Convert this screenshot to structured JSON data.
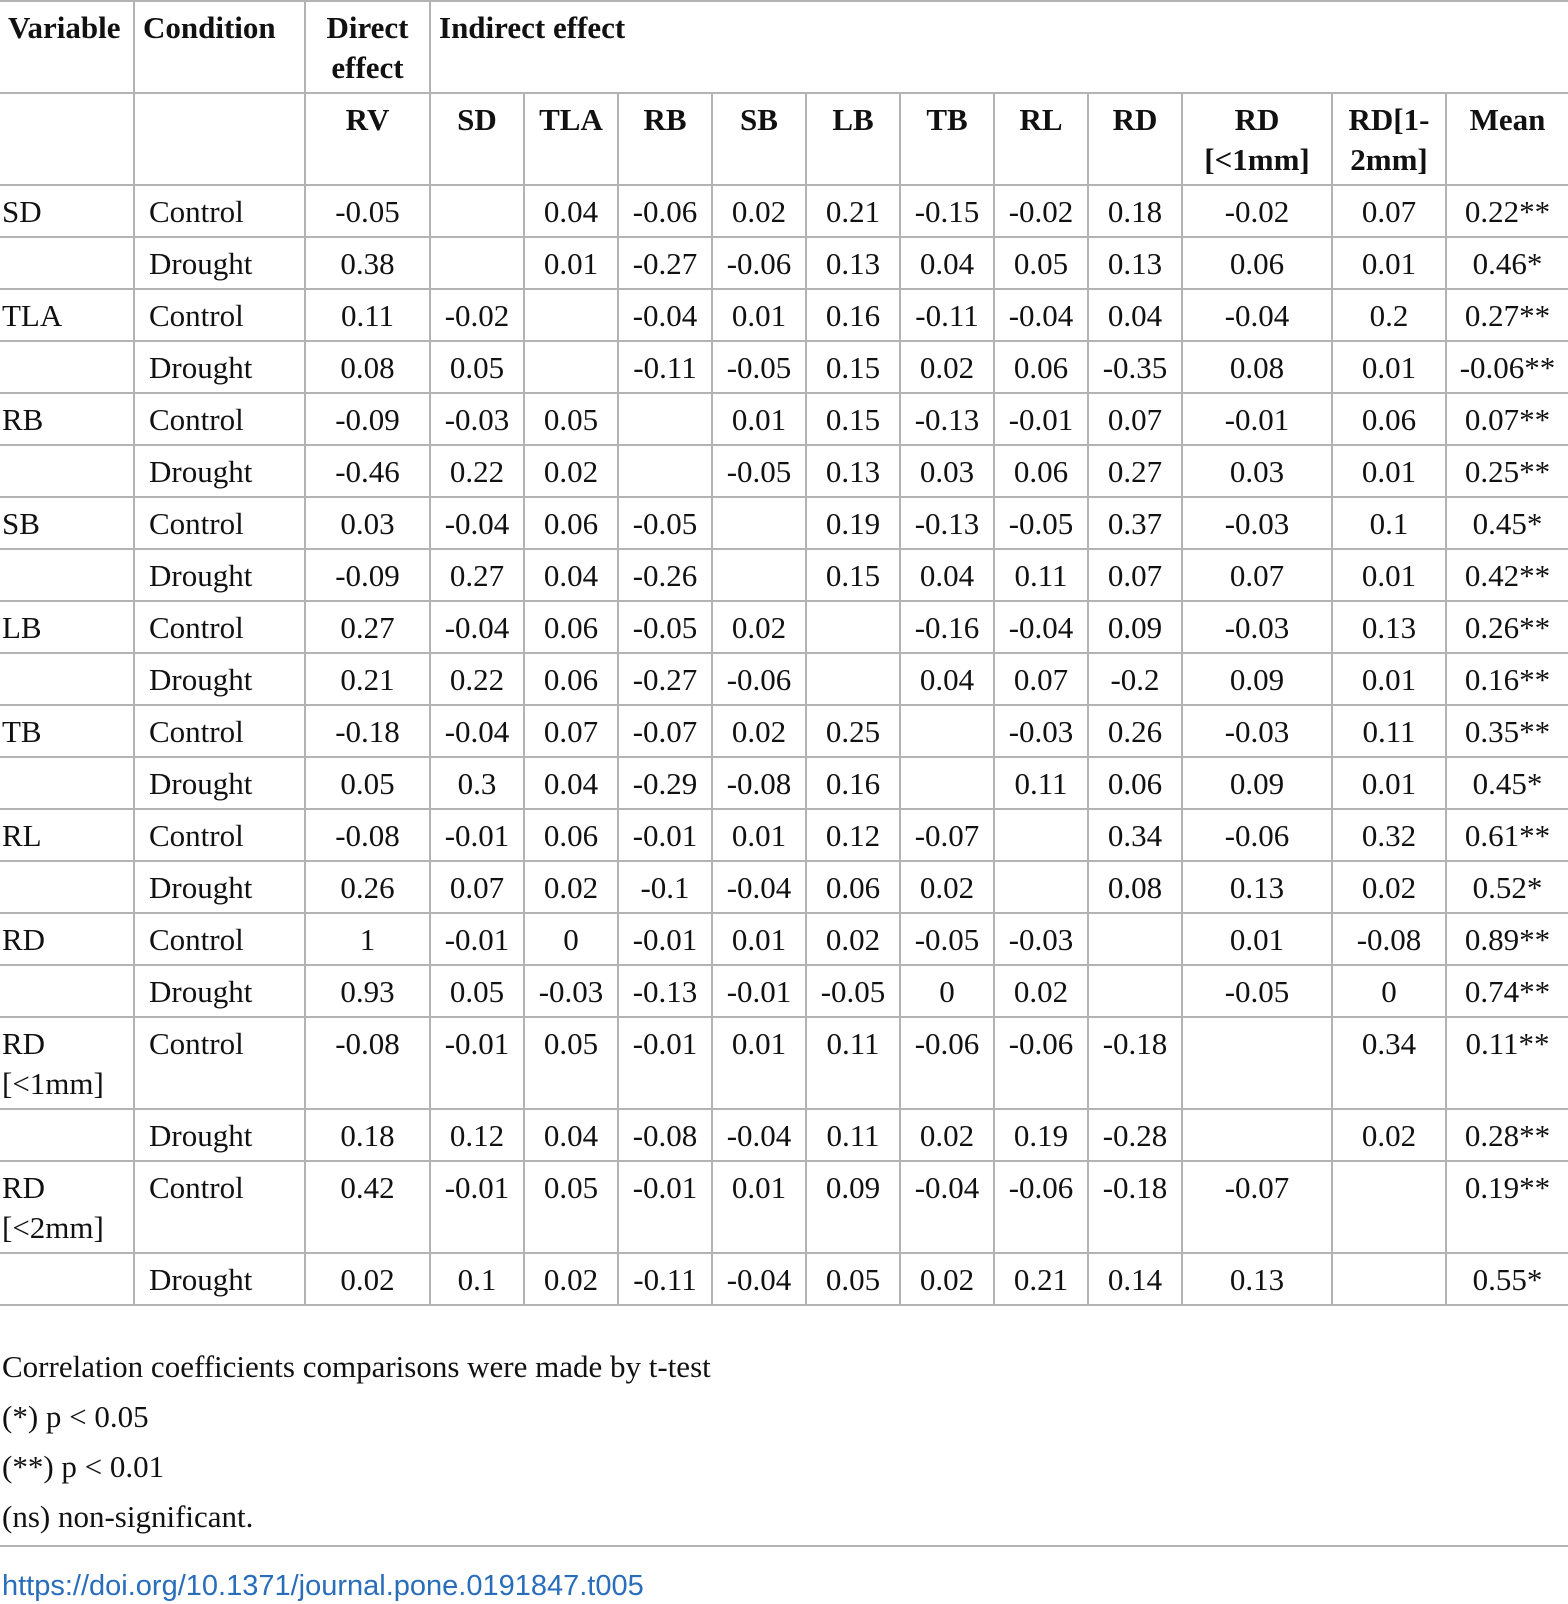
{
  "header": {
    "variable": "Variable",
    "condition": "Condition",
    "direct_effect": "Direct effect",
    "indirect_effect": "Indirect effect",
    "sub": [
      "RV",
      "SD",
      "TLA",
      "RB",
      "SB",
      "LB",
      "TB",
      "RL",
      "RD",
      "RD [<1mm]",
      "RD[1-2mm]",
      "Mean"
    ]
  },
  "rows": [
    {
      "var": "SD",
      "cond": "Control",
      "cells": [
        "-0.05",
        "",
        "0.04",
        "-0.06",
        "0.02",
        "0.21",
        "-0.15",
        "-0.02",
        "0.18",
        "-0.02",
        "0.07",
        "0.22**"
      ]
    },
    {
      "var": "",
      "cond": "Drought",
      "cells": [
        "0.38",
        "",
        "0.01",
        "-0.27",
        "-0.06",
        "0.13",
        "0.04",
        "0.05",
        "0.13",
        "0.06",
        "0.01",
        "0.46*"
      ]
    },
    {
      "var": "TLA",
      "cond": "Control",
      "cells": [
        "0.11",
        "-0.02",
        "",
        "-0.04",
        "0.01",
        "0.16",
        "-0.11",
        "-0.04",
        "0.04",
        "-0.04",
        "0.2",
        "0.27**"
      ]
    },
    {
      "var": "",
      "cond": "Drought",
      "cells": [
        "0.08",
        "0.05",
        "",
        "-0.11",
        "-0.05",
        "0.15",
        "0.02",
        "0.06",
        "-0.35",
        "0.08",
        "0.01",
        "-0.06**"
      ]
    },
    {
      "var": "RB",
      "cond": "Control",
      "cells": [
        "-0.09",
        "-0.03",
        "0.05",
        "",
        "0.01",
        "0.15",
        "-0.13",
        "-0.01",
        "0.07",
        "-0.01",
        "0.06",
        "0.07**"
      ]
    },
    {
      "var": "",
      "cond": "Drought",
      "cells": [
        "-0.46",
        "0.22",
        "0.02",
        "",
        "-0.05",
        "0.13",
        "0.03",
        "0.06",
        "0.27",
        "0.03",
        "0.01",
        "0.25**"
      ]
    },
    {
      "var": "SB",
      "cond": "Control",
      "cells": [
        "0.03",
        "-0.04",
        "0.06",
        "-0.05",
        "",
        "0.19",
        "-0.13",
        "-0.05",
        "0.37",
        "-0.03",
        "0.1",
        "0.45*"
      ]
    },
    {
      "var": "",
      "cond": "Drought",
      "cells": [
        "-0.09",
        "0.27",
        "0.04",
        "-0.26",
        "",
        "0.15",
        "0.04",
        "0.11",
        "0.07",
        "0.07",
        "0.01",
        "0.42**"
      ]
    },
    {
      "var": "LB",
      "cond": "Control",
      "cells": [
        "0.27",
        "-0.04",
        "0.06",
        "-0.05",
        "0.02",
        "",
        "-0.16",
        "-0.04",
        "0.09",
        "-0.03",
        "0.13",
        "0.26**"
      ]
    },
    {
      "var": "",
      "cond": "Drought",
      "cells": [
        "0.21",
        "0.22",
        "0.06",
        "-0.27",
        "-0.06",
        "",
        "0.04",
        "0.07",
        "-0.2",
        "0.09",
        "0.01",
        "0.16**"
      ]
    },
    {
      "var": "TB",
      "cond": "Control",
      "cells": [
        "-0.18",
        "-0.04",
        "0.07",
        "-0.07",
        "0.02",
        "0.25",
        "",
        "-0.03",
        "0.26",
        "-0.03",
        "0.11",
        "0.35**"
      ]
    },
    {
      "var": "",
      "cond": "Drought",
      "cells": [
        "0.05",
        "0.3",
        "0.04",
        "-0.29",
        "-0.08",
        "0.16",
        "",
        "0.11",
        "0.06",
        "0.09",
        "0.01",
        "0.45*"
      ]
    },
    {
      "var": "RL",
      "cond": "Control",
      "cells": [
        "-0.08",
        "-0.01",
        "0.06",
        "-0.01",
        "0.01",
        "0.12",
        "-0.07",
        "",
        "0.34",
        "-0.06",
        "0.32",
        "0.61**"
      ]
    },
    {
      "var": "",
      "cond": "Drought",
      "cells": [
        "0.26",
        "0.07",
        "0.02",
        "-0.1",
        "-0.04",
        "0.06",
        "0.02",
        "",
        "0.08",
        "0.13",
        "0.02",
        "0.52*"
      ]
    },
    {
      "var": "RD",
      "cond": "Control",
      "cells": [
        "1",
        "-0.01",
        "0",
        "-0.01",
        "0.01",
        "0.02",
        "-0.05",
        "-0.03",
        "",
        "0.01",
        "-0.08",
        "0.89**"
      ]
    },
    {
      "var": "",
      "cond": "Drought",
      "cells": [
        "0.93",
        "0.05",
        "-0.03",
        "-0.13",
        "-0.01",
        "-0.05",
        "0",
        "0.02",
        "",
        "-0.05",
        "0",
        "0.74**"
      ]
    },
    {
      "var": "RD [<1mm]",
      "cond": "Control",
      "cells": [
        "-0.08",
        "-0.01",
        "0.05",
        "-0.01",
        "0.01",
        "0.11",
        "-0.06",
        "-0.06",
        "-0.18",
        "",
        "0.34",
        "0.11**"
      ]
    },
    {
      "var": "",
      "cond": "Drought",
      "cells": [
        "0.18",
        "0.12",
        "0.04",
        "-0.08",
        "-0.04",
        "0.11",
        "0.02",
        "0.19",
        "-0.28",
        "",
        "0.02",
        "0.28**"
      ]
    },
    {
      "var": "RD [<2mm]",
      "cond": "Control",
      "cells": [
        "0.42",
        "-0.01",
        "0.05",
        "-0.01",
        "0.01",
        "0.09",
        "-0.04",
        "-0.06",
        "-0.18",
        "-0.07",
        "",
        "0.19**"
      ]
    },
    {
      "var": "",
      "cond": "Drought",
      "cells": [
        "0.02",
        "0.1",
        "0.02",
        "-0.11",
        "-0.04",
        "0.05",
        "0.02",
        "0.21",
        "0.14",
        "0.13",
        "",
        "0.55*"
      ]
    }
  ],
  "notes": [
    "Correlation coefficients comparisons were made by t-test",
    "(*) p < 0.05",
    "(**) p < 0.01",
    "(ns) non-significant."
  ],
  "doi": "https://doi.org/10.1371/journal.pone.0191847.t005"
}
